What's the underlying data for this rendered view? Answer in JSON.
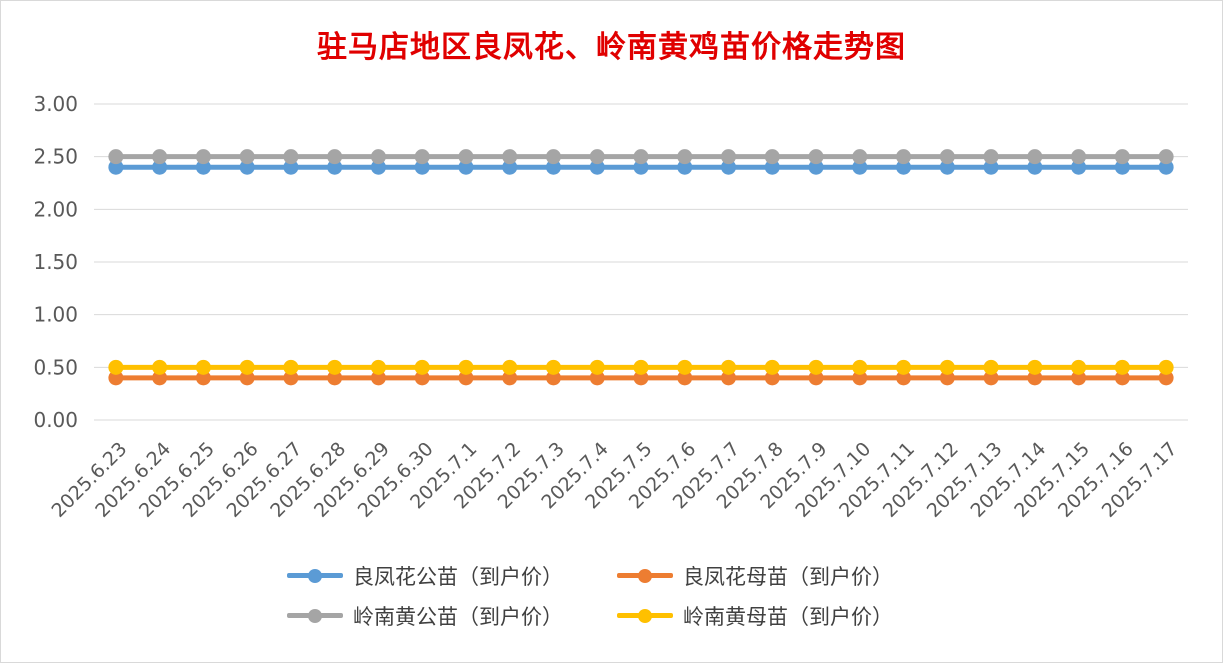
{
  "chart_data": {
    "type": "line",
    "title": "驻马店地区良凤花、岭南黄鸡苗价格走势图",
    "xlabel": "",
    "ylabel": "",
    "ylim": [
      0,
      3
    ],
    "yticks": [
      "0.00",
      "0.50",
      "1.00",
      "1.50",
      "2.00",
      "2.50",
      "3.00"
    ],
    "grid": true,
    "legend_position": "bottom",
    "categories": [
      "2025.6.23",
      "2025.6.24",
      "2025.6.25",
      "2025.6.26",
      "2025.6.27",
      "2025.6.28",
      "2025.6.29",
      "2025.6.30",
      "2025.7.1",
      "2025.7.2",
      "2025.7.3",
      "2025.7.4",
      "2025.7.5",
      "2025.7.6",
      "2025.7.7",
      "2025.7.8",
      "2025.7.9",
      "2025.7.10",
      "2025.7.11",
      "2025.7.12",
      "2025.7.13",
      "2025.7.14",
      "2025.7.15",
      "2025.7.16",
      "2025.7.17"
    ],
    "series": [
      {
        "name": "良凤花公苗（到户价）",
        "color": "#5b9bd5",
        "values": [
          2.4,
          2.4,
          2.4,
          2.4,
          2.4,
          2.4,
          2.4,
          2.4,
          2.4,
          2.4,
          2.4,
          2.4,
          2.4,
          2.4,
          2.4,
          2.4,
          2.4,
          2.4,
          2.4,
          2.4,
          2.4,
          2.4,
          2.4,
          2.4,
          2.4
        ]
      },
      {
        "name": "良凤花母苗（到户价）",
        "color": "#ed7d31",
        "values": [
          0.4,
          0.4,
          0.4,
          0.4,
          0.4,
          0.4,
          0.4,
          0.4,
          0.4,
          0.4,
          0.4,
          0.4,
          0.4,
          0.4,
          0.4,
          0.4,
          0.4,
          0.4,
          0.4,
          0.4,
          0.4,
          0.4,
          0.4,
          0.4,
          0.4
        ]
      },
      {
        "name": "岭南黄公苗（到户价）",
        "color": "#a5a5a5",
        "values": [
          2.5,
          2.5,
          2.5,
          2.5,
          2.5,
          2.5,
          2.5,
          2.5,
          2.5,
          2.5,
          2.5,
          2.5,
          2.5,
          2.5,
          2.5,
          2.5,
          2.5,
          2.5,
          2.5,
          2.5,
          2.5,
          2.5,
          2.5,
          2.5,
          2.5
        ]
      },
      {
        "name": "岭南黄母苗（到户价）",
        "color": "#ffc000",
        "values": [
          0.5,
          0.5,
          0.5,
          0.5,
          0.5,
          0.5,
          0.5,
          0.5,
          0.5,
          0.5,
          0.5,
          0.5,
          0.5,
          0.5,
          0.5,
          0.5,
          0.5,
          0.5,
          0.5,
          0.5,
          0.5,
          0.5,
          0.5,
          0.5,
          0.5
        ]
      }
    ]
  }
}
